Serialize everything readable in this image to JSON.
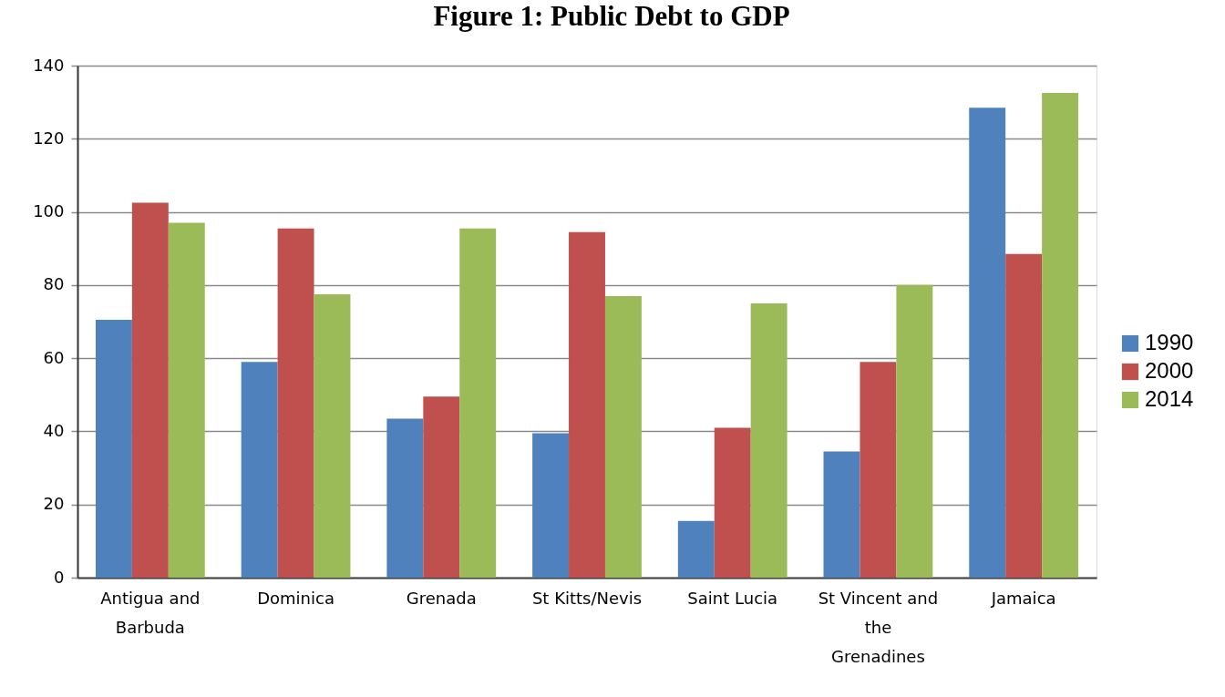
{
  "chart_data": {
    "type": "bar",
    "title": "Figure 1: Public Debt to GDP",
    "categories": [
      "Antigua and Barbuda",
      "Dominica",
      "Grenada",
      "St Kitts/Nevis",
      "Saint Lucia",
      "St Vincent and the Grenadines",
      "Jamaica"
    ],
    "series": [
      {
        "name": "1990",
        "color": "#4f81bd",
        "values": [
          70.5,
          59,
          43.5,
          39.5,
          15.5,
          34.5,
          128.5
        ]
      },
      {
        "name": "2000",
        "color": "#c0504d",
        "values": [
          102.5,
          95.5,
          49.5,
          94.5,
          41,
          59,
          88.5
        ]
      },
      {
        "name": "2014",
        "color": "#9bbb59",
        "values": [
          97,
          77.5,
          95.5,
          77,
          75,
          80,
          132.5
        ]
      }
    ],
    "ylim": [
      0,
      140
    ],
    "yticks": [
      0,
      20,
      40,
      60,
      80,
      100,
      120,
      140
    ],
    "grid": "y",
    "legend": "right"
  }
}
